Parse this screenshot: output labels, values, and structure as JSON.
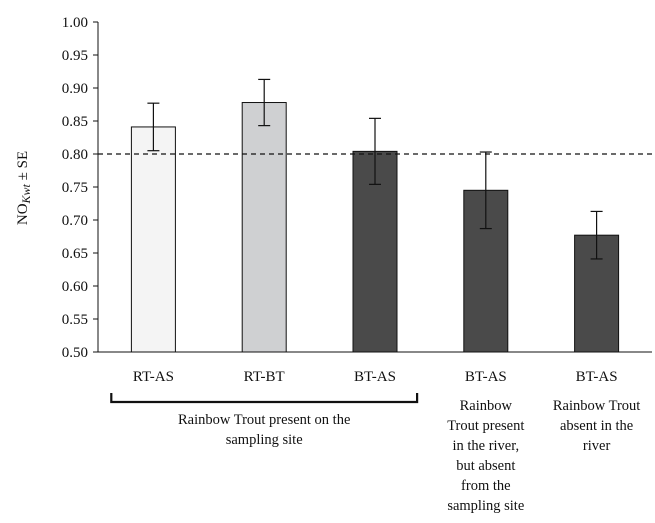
{
  "chart_data": {
    "type": "bar",
    "ylabel": {
      "main": "NO",
      "sub": "Kwt",
      "suffix": " ± SE"
    },
    "ylim": [
      0.5,
      1.0
    ],
    "yticks": [
      "0.50",
      "0.55",
      "0.60",
      "0.65",
      "0.70",
      "0.75",
      "0.80",
      "0.85",
      "0.90",
      "0.95",
      "1.00"
    ],
    "ytick_values": [
      0.5,
      0.55,
      0.6,
      0.65,
      0.7,
      0.75,
      0.8,
      0.85,
      0.9,
      0.95,
      1.0
    ],
    "reference_line": 0.8,
    "categories": [
      "RT-AS",
      "RT-BT",
      "BT-AS",
      "BT-AS",
      "BT-AS"
    ],
    "values": [
      0.841,
      0.878,
      0.804,
      0.745,
      0.677
    ],
    "errors": [
      0.036,
      0.035,
      0.05,
      0.058,
      0.036
    ],
    "colors": [
      "#f4f4f4",
      "#cfd0d2",
      "#4a4a4a",
      "#4a4a4a",
      "#4a4a4a"
    ],
    "group_labels": [
      {
        "categories": [
          0,
          1,
          2
        ],
        "bracket": true,
        "lines": [
          "Rainbow Trout present on the",
          "sampling site"
        ]
      },
      {
        "categories": [
          3
        ],
        "bracket": false,
        "lines": [
          "Rainbow",
          "Trout present",
          "in the river,",
          "but absent",
          "from the",
          "sampling site"
        ]
      },
      {
        "categories": [
          4
        ],
        "bracket": false,
        "lines": [
          "Rainbow Trout",
          "absent in the",
          "river"
        ]
      }
    ],
    "grid": false
  }
}
